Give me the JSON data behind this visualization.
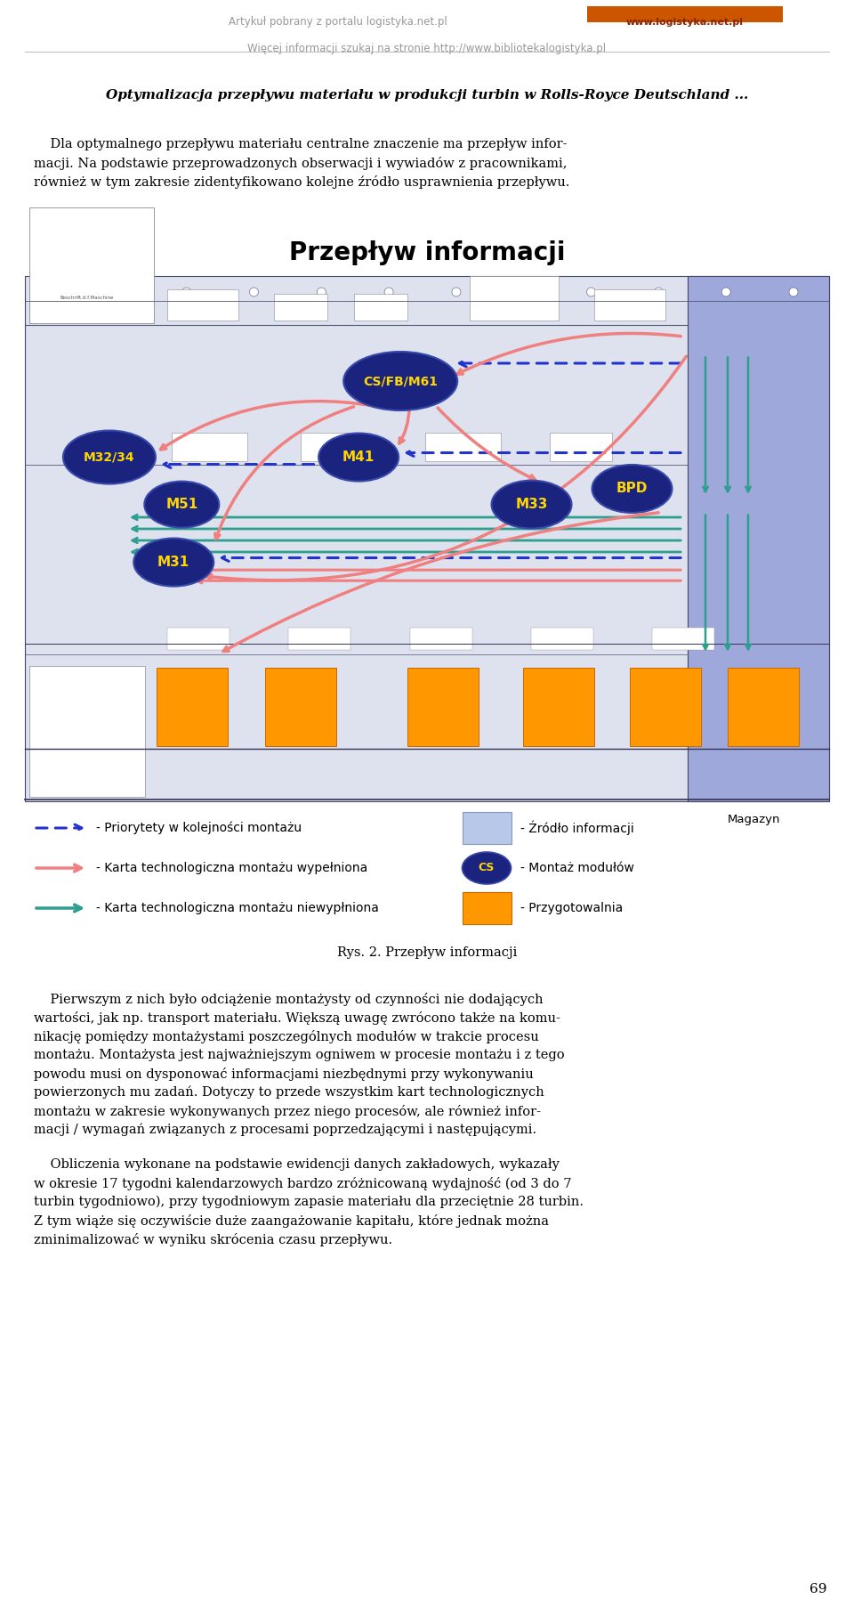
{
  "page_title_line1": "Artykuł pobrany z portalu logistyka.net.pl",
  "page_title_line2": "Więcej informacji szukaj na stronie http://www.bibliotekalogistyka.pl",
  "article_title": "Optymalizacja przepływu materiału w produkcji turbin w Rolls-Royce Deutschland ...",
  "diagram_title": "Przepływ informacji",
  "caption": "Rys. 2. Przepływ informacji",
  "page_number": "69",
  "bg_color": "#ffffff",
  "text_color": "#000000",
  "header_color": "#999999",
  "node_fill": "#1a237e",
  "node_text": "#FFD700",
  "teal": "#2e9e8e",
  "salmon": "#F08080",
  "blue_dot": "#2233cc",
  "orange": "#FF9800"
}
